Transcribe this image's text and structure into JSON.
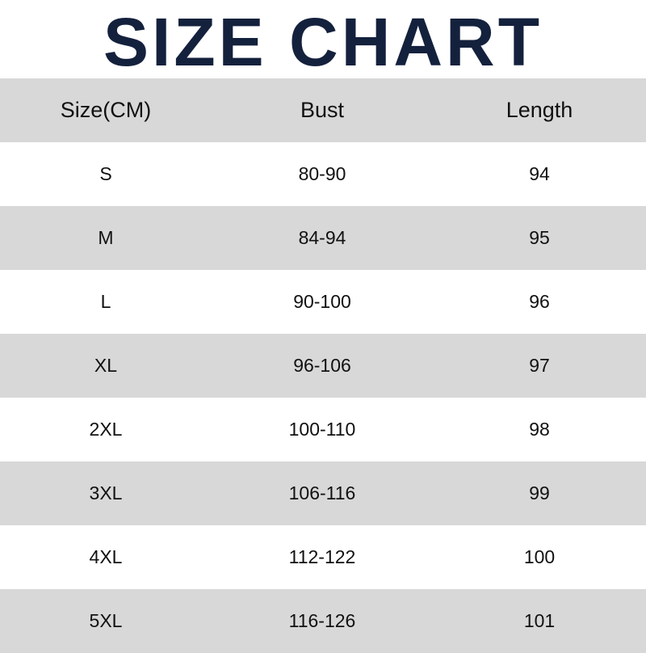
{
  "title": "SIZE CHART",
  "headers": [
    "Size(CM)",
    "Bust",
    "Length"
  ],
  "rows": [
    [
      "S",
      "80-90",
      "94"
    ],
    [
      "M",
      "84-94",
      "95"
    ],
    [
      "L",
      "90-100",
      "96"
    ],
    [
      "XL",
      "96-106",
      "97"
    ],
    [
      "2XL",
      "100-110",
      "98"
    ],
    [
      "3XL",
      "106-116",
      "99"
    ],
    [
      "4XL",
      "112-122",
      "100"
    ],
    [
      "5XL",
      "116-126",
      "101"
    ]
  ],
  "colors": {
    "title": "#14213d",
    "stripe": "#d8d8d8"
  }
}
